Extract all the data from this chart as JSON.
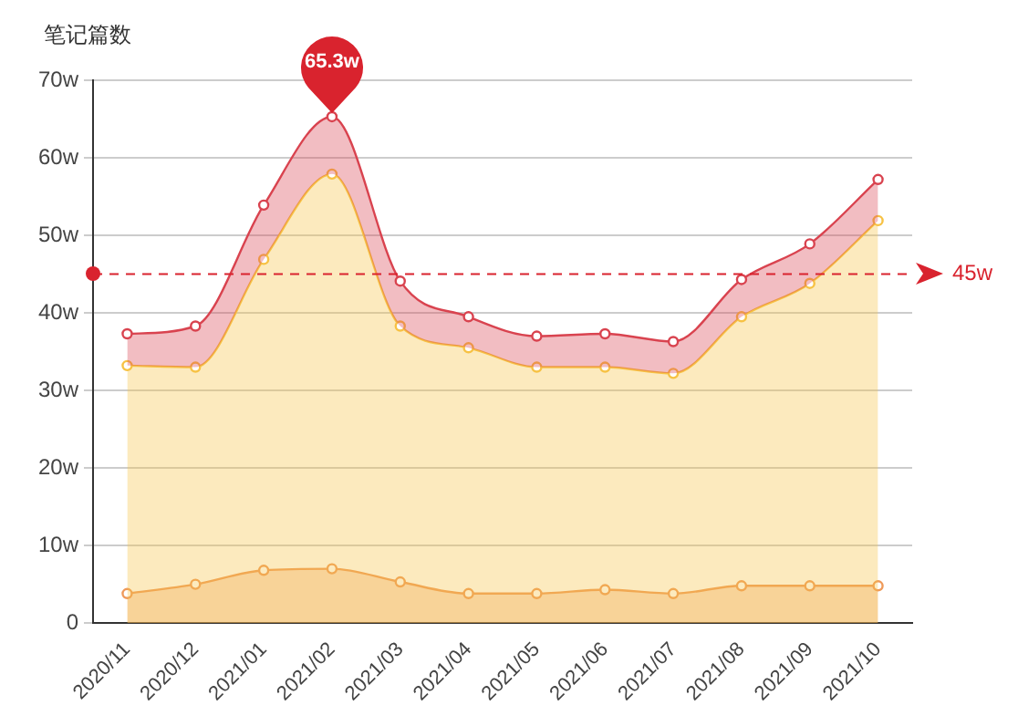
{
  "chart_data": {
    "type": "area",
    "ylabel": "笔记篇数",
    "categories": [
      "2020/11",
      "2020/12",
      "2021/01",
      "2021/02",
      "2021/03",
      "2021/04",
      "2021/05",
      "2021/06",
      "2021/07",
      "2021/08",
      "2021/09",
      "2021/10"
    ],
    "series": [
      {
        "color": "#d9434f",
        "values": [
          37.3,
          38.3,
          53.9,
          65.3,
          44.1,
          39.5,
          37.0,
          37.3,
          36.3,
          44.3,
          48.9,
          57.2
        ]
      },
      {
        "color": "#f7c244",
        "values": [
          33.2,
          33.0,
          46.9,
          57.9,
          38.3,
          35.5,
          33.0,
          33.0,
          32.2,
          39.5,
          43.8,
          51.9
        ]
      },
      {
        "color": "#ef9a5a",
        "values": [
          3.8,
          5.0,
          6.8,
          7.0,
          5.3,
          3.8,
          3.8,
          4.3,
          3.8,
          4.8,
          4.8,
          4.8
        ]
      }
    ],
    "ylim": [
      0,
      70
    ],
    "yticks": [
      0,
      {
        "value": 10,
        "label": "10w"
      },
      {
        "value": 20,
        "label": "20w"
      },
      {
        "value": 30,
        "label": "30w"
      },
      {
        "value": 40,
        "label": "40w"
      },
      {
        "value": 50,
        "label": "50w"
      },
      {
        "value": 60,
        "label": "60w"
      },
      {
        "value": 70,
        "label": "70w"
      }
    ],
    "grid": "y",
    "marker": "circle",
    "line_style": "solid",
    "ref_lines": [
      {
        "axis": "y",
        "value": 45,
        "label": "45w",
        "color": "#d9232e",
        "line_style": "dashed"
      }
    ],
    "annotations": [
      {
        "text": "65.3w",
        "x": "2021/02",
        "y": 65.3
      }
    ]
  }
}
